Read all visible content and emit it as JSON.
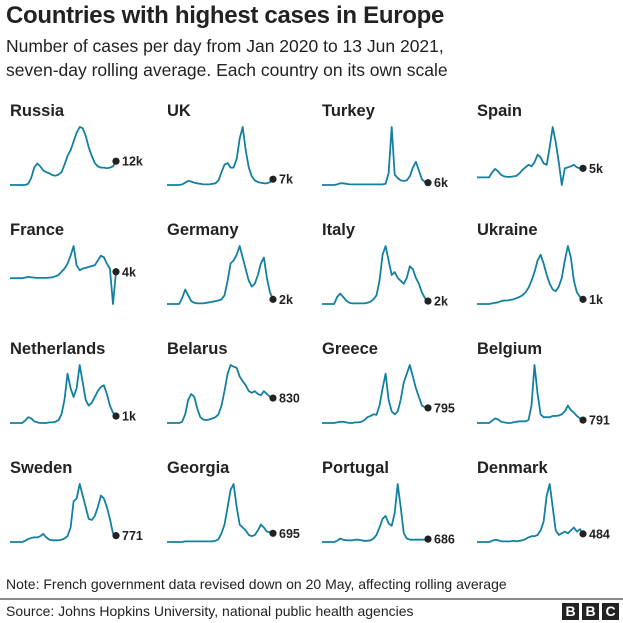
{
  "chart_data": {
    "type": "line",
    "title": "Countries with highest cases in Europe",
    "subtitle": [
      "Number of cases per day from Jan 2020 to 13 Jun 2021,",
      "seven-day rolling average. Each country on its own scale"
    ],
    "x_range": [
      "Jan 2020",
      "13 Jun 2021"
    ],
    "values_note": "Series values are relative to each country's own peak (peak = 100); each panel on its own scale",
    "line_color": "#1380a1",
    "series": [
      {
        "name": "Russia",
        "latest": "12k",
        "values": [
          0,
          0,
          0,
          0,
          0,
          0,
          2,
          12,
          30,
          37,
          32,
          25,
          22,
          20,
          17,
          16,
          18,
          22,
          35,
          50,
          60,
          75,
          90,
          100,
          98,
          85,
          65,
          50,
          38,
          32,
          30,
          30,
          29,
          30,
          32,
          41
        ]
      },
      {
        "name": "UK",
        "latest": "7k",
        "values": [
          0,
          0,
          0,
          0,
          0,
          1,
          4,
          7,
          6,
          4,
          3,
          2,
          1,
          1,
          1,
          2,
          3,
          8,
          22,
          35,
          38,
          30,
          30,
          45,
          80,
          100,
          60,
          30,
          15,
          8,
          5,
          4,
          3,
          3,
          5,
          10
        ]
      },
      {
        "name": "Turkey",
        "latest": "6k",
        "values": [
          0,
          0,
          0,
          0,
          0,
          1,
          3,
          3,
          2,
          1,
          1,
          1,
          1,
          1,
          1,
          1,
          1,
          1,
          1,
          1,
          1,
          2,
          20,
          100,
          18,
          12,
          8,
          7,
          8,
          15,
          30,
          40,
          25,
          10,
          5,
          4
        ]
      },
      {
        "name": "Spain",
        "latest": "5k",
        "values": [
          0,
          0,
          0,
          0,
          0,
          10,
          17,
          12,
          5,
          2,
          1,
          1,
          2,
          3,
          8,
          15,
          20,
          25,
          22,
          30,
          45,
          40,
          28,
          25,
          60,
          100,
          70,
          30,
          -15,
          18,
          20,
          22,
          25,
          20,
          18,
          18
        ]
      },
      {
        "name": "France",
        "latest": "4k",
        "values": [
          0,
          0,
          0,
          0,
          0,
          2,
          4,
          3,
          2,
          1,
          1,
          1,
          1,
          2,
          3,
          6,
          10,
          20,
          30,
          45,
          70,
          100,
          40,
          25,
          30,
          32,
          35,
          38,
          40,
          55,
          70,
          65,
          45,
          30,
          -80,
          20
        ]
      },
      {
        "name": "Germany",
        "latest": "2k",
        "values": [
          0,
          0,
          0,
          0,
          0,
          10,
          25,
          15,
          5,
          2,
          1,
          1,
          1,
          2,
          3,
          4,
          5,
          6,
          8,
          15,
          40,
          70,
          75,
          85,
          100,
          80,
          60,
          40,
          30,
          35,
          50,
          70,
          80,
          45,
          20,
          8
        ]
      },
      {
        "name": "Italy",
        "latest": "2k",
        "values": [
          0,
          0,
          0,
          0,
          0,
          12,
          18,
          12,
          6,
          2,
          1,
          1,
          1,
          1,
          1,
          2,
          4,
          8,
          15,
          40,
          85,
          100,
          75,
          50,
          55,
          45,
          40,
          35,
          45,
          65,
          60,
          45,
          35,
          20,
          10,
          5
        ]
      },
      {
        "name": "Ukraine",
        "latest": "1k",
        "values": [
          0,
          0,
          0,
          0,
          0,
          1,
          2,
          3,
          5,
          6,
          6,
          7,
          8,
          10,
          12,
          15,
          20,
          28,
          40,
          55,
          75,
          85,
          70,
          50,
          35,
          25,
          22,
          30,
          45,
          75,
          100,
          80,
          40,
          20,
          12,
          8
        ]
      },
      {
        "name": "Netherlands",
        "latest": "1k",
        "values": [
          0,
          0,
          0,
          0,
          0,
          4,
          10,
          8,
          3,
          1,
          0,
          0,
          0,
          1,
          1,
          2,
          5,
          15,
          40,
          85,
          60,
          45,
          60,
          100,
          70,
          40,
          30,
          35,
          45,
          55,
          62,
          65,
          50,
          30,
          18,
          12
        ]
      },
      {
        "name": "Belarus",
        "latest": "830",
        "values": [
          0,
          0,
          0,
          0,
          0,
          2,
          15,
          40,
          50,
          45,
          25,
          10,
          6,
          5,
          6,
          8,
          10,
          15,
          30,
          55,
          85,
          100,
          97,
          95,
          80,
          72,
          65,
          55,
          52,
          55,
          50,
          48,
          55,
          50,
          45,
          43
        ]
      },
      {
        "name": "Greece",
        "latest": "795",
        "values": [
          0,
          0,
          0,
          0,
          0,
          1,
          2,
          2,
          1,
          0,
          0,
          1,
          1,
          2,
          5,
          10,
          12,
          15,
          14,
          30,
          60,
          85,
          40,
          20,
          15,
          20,
          40,
          70,
          85,
          100,
          80,
          60,
          45,
          30,
          27,
          26
        ]
      },
      {
        "name": "Belgium",
        "latest": "791",
        "values": [
          0,
          0,
          0,
          0,
          0,
          4,
          8,
          6,
          2,
          1,
          0,
          0,
          1,
          2,
          3,
          3,
          3,
          5,
          30,
          100,
          50,
          15,
          10,
          10,
          10,
          12,
          12,
          13,
          15,
          20,
          30,
          22,
          18,
          12,
          8,
          5
        ]
      },
      {
        "name": "Sweden",
        "latest": "771",
        "values": [
          0,
          0,
          0,
          0,
          0,
          2,
          5,
          7,
          8,
          8,
          10,
          14,
          8,
          4,
          3,
          3,
          3,
          4,
          6,
          10,
          25,
          70,
          75,
          100,
          80,
          60,
          40,
          38,
          45,
          60,
          80,
          75,
          60,
          40,
          15,
          11
        ]
      },
      {
        "name": "Georgia",
        "latest": "695",
        "values": [
          0,
          0,
          0,
          0,
          0,
          0,
          1,
          1,
          1,
          1,
          1,
          1,
          1,
          1,
          1,
          1,
          2,
          5,
          15,
          30,
          60,
          90,
          100,
          60,
          30,
          25,
          20,
          12,
          10,
          12,
          20,
          30,
          25,
          18,
          17,
          15
        ]
      },
      {
        "name": "Portugal",
        "latest": "686",
        "values": [
          0,
          0,
          0,
          0,
          0,
          2,
          6,
          4,
          3,
          3,
          3,
          4,
          4,
          3,
          2,
          2,
          3,
          6,
          12,
          25,
          40,
          45,
          32,
          28,
          50,
          100,
          60,
          15,
          6,
          4,
          4,
          4,
          4,
          4,
          4,
          5
        ]
      },
      {
        "name": "Denmark",
        "latest": "484",
        "values": [
          0,
          0,
          0,
          0,
          0,
          2,
          4,
          3,
          1,
          1,
          1,
          1,
          2,
          1,
          2,
          3,
          5,
          8,
          10,
          10,
          12,
          20,
          35,
          80,
          100,
          60,
          20,
          12,
          15,
          18,
          15,
          20,
          25,
          18,
          22,
          14
        ]
      }
    ],
    "note": "Note: French government data revised down on 20 May, affecting rolling average",
    "source": "Source: Johns Hopkins University, national public health agencies"
  },
  "logo": "BBC"
}
